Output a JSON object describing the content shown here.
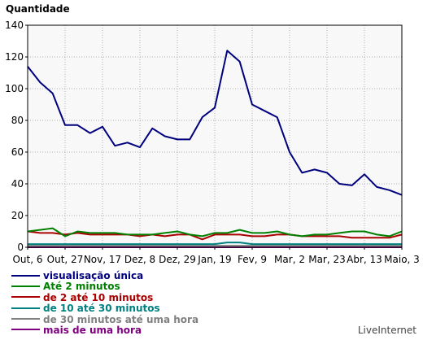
{
  "chart_data": {
    "type": "line",
    "title": "Quantidade",
    "ylim": [
      0,
      140
    ],
    "yticks": [
      0,
      20,
      40,
      60,
      80,
      100,
      120,
      140
    ],
    "grid": true,
    "legend_position": "bottom-left",
    "x_tick_labels": [
      "Out, 6",
      "Out, 27",
      "Nov, 17",
      "Dez, 8",
      "Dez, 29",
      "Jan, 19",
      "Fev, 9",
      "Mar, 2",
      "Mar, 23",
      "Abr, 13",
      "Maio, 3"
    ],
    "x_tick_index": [
      0,
      3,
      6,
      9,
      12,
      15,
      18,
      21,
      24,
      27,
      30
    ],
    "series": [
      {
        "name": "visualisação única",
        "color": "#00007f",
        "values": [
          114,
          104,
          97,
          77,
          77,
          72,
          76,
          64,
          66,
          63,
          75,
          70,
          68,
          68,
          82,
          88,
          124,
          117,
          90,
          86,
          82,
          60,
          47,
          49,
          47,
          40,
          39,
          46,
          38,
          36,
          33
        ]
      },
      {
        "name": "Até 2 minutos",
        "color": "#008000",
        "values": [
          10,
          11,
          12,
          7,
          10,
          9,
          9,
          9,
          8,
          8,
          8,
          9,
          10,
          8,
          7,
          9,
          9,
          11,
          9,
          9,
          10,
          8,
          7,
          8,
          8,
          9,
          10,
          10,
          8,
          7,
          10
        ]
      },
      {
        "name": "de 2 até 10 minutos",
        "color": "#aa0000",
        "values": [
          10,
          9,
          9,
          8,
          9,
          8,
          8,
          8,
          8,
          7,
          8,
          7,
          8,
          8,
          5,
          8,
          8,
          8,
          7,
          7,
          8,
          8,
          7,
          7,
          7,
          7,
          6,
          6,
          6,
          6,
          8
        ]
      },
      {
        "name": "de 10 até 30 minutos",
        "color": "#008080",
        "values": [
          2,
          2,
          2,
          2,
          2,
          2,
          2,
          2,
          2,
          2,
          2,
          2,
          2,
          2,
          2,
          2,
          3,
          3,
          2,
          2,
          2,
          2,
          2,
          2,
          2,
          2,
          2,
          2,
          2,
          2,
          2
        ]
      },
      {
        "name": "de 30 minutos até uma hora",
        "color": "#808080",
        "values": [
          1,
          1,
          1,
          1,
          1,
          1,
          1,
          1,
          1,
          1,
          1,
          1,
          1,
          1,
          1,
          1,
          1,
          1,
          1,
          1,
          1,
          1,
          1,
          1,
          1,
          1,
          1,
          1,
          1,
          1,
          1
        ]
      },
      {
        "name": "mais de uma hora",
        "color": "#800080",
        "values": [
          0,
          0,
          0,
          0,
          0,
          0,
          0,
          0,
          0,
          0,
          0,
          0,
          0,
          0,
          0,
          0,
          0,
          0,
          0,
          0,
          0,
          0,
          0,
          0,
          0,
          0,
          0,
          0,
          0,
          0,
          0
        ]
      }
    ]
  },
  "credit": "LiveInternet"
}
